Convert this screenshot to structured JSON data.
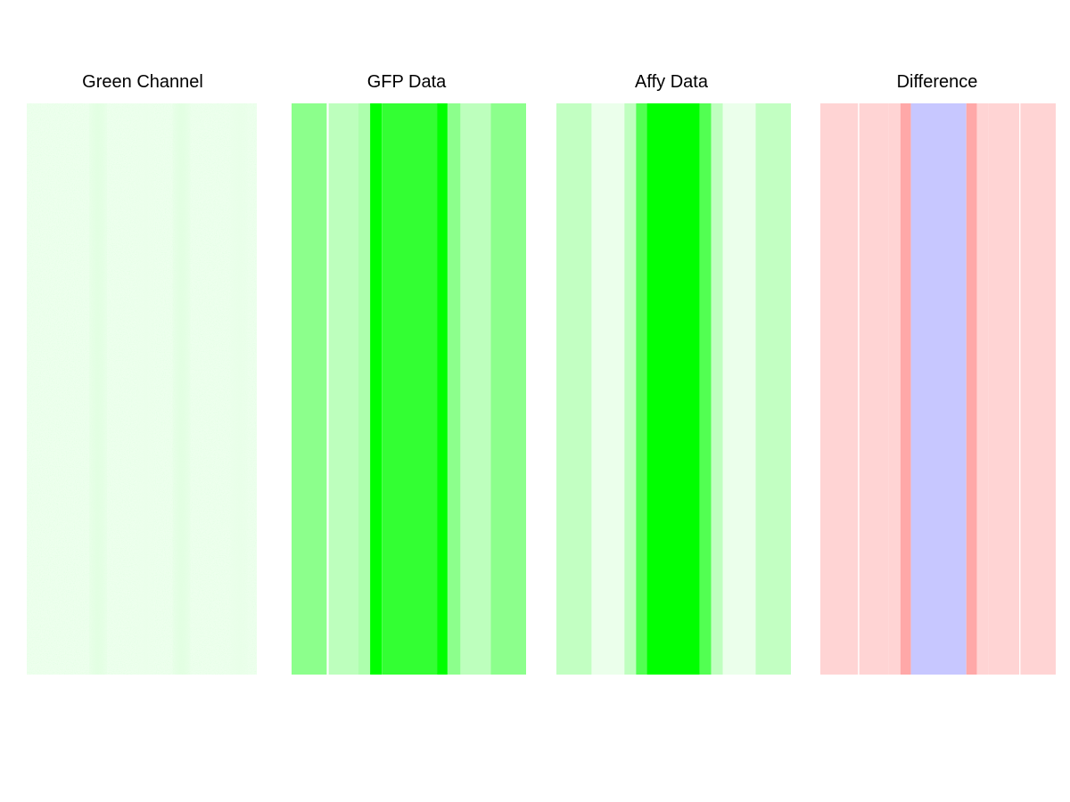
{
  "colors": {
    "background": "#ffffff",
    "green_full": "#00ff00",
    "red": "#ff0000",
    "blue": "#0000ff"
  },
  "chart_data": {
    "type": "heatmap",
    "panels": [
      {
        "key": "green_channel",
        "title": "Green Channel",
        "kind": "microscopy",
        "hue": "green",
        "base_intensity": 0.07,
        "faint_stripes": [
          {
            "x": 0.32,
            "intensity": 0.12
          },
          {
            "x": 0.52,
            "intensity": 0.08
          },
          {
            "x": 0.67,
            "intensity": 0.12
          },
          {
            "x": 0.91,
            "intensity": 0.09
          }
        ]
      },
      {
        "key": "gfp_data",
        "title": "GFP Data",
        "kind": "bands",
        "bands": [
          {
            "from": 0.0,
            "to": 0.15,
            "hue": "green",
            "intensity": 0.45
          },
          {
            "from": 0.158,
            "to": 0.285,
            "hue": "green",
            "intensity": 0.26
          },
          {
            "from": 0.285,
            "to": 0.335,
            "hue": "green",
            "intensity": 0.32
          },
          {
            "from": 0.335,
            "to": 0.385,
            "hue": "green",
            "intensity": 1.0
          },
          {
            "from": 0.385,
            "to": 0.62,
            "hue": "green",
            "intensity": 0.8
          },
          {
            "from": 0.62,
            "to": 0.665,
            "hue": "green",
            "intensity": 1.0
          },
          {
            "from": 0.665,
            "to": 0.72,
            "hue": "green",
            "intensity": 0.45
          },
          {
            "from": 0.72,
            "to": 0.85,
            "hue": "green",
            "intensity": 0.26
          },
          {
            "from": 0.85,
            "to": 1.0,
            "hue": "green",
            "intensity": 0.45
          }
        ]
      },
      {
        "key": "affy_data",
        "title": "Affy Data",
        "kind": "bands",
        "bands": [
          {
            "from": 0.0,
            "to": 0.15,
            "hue": "green",
            "intensity": 0.24
          },
          {
            "from": 0.15,
            "to": 0.29,
            "hue": "green",
            "intensity": 0.08
          },
          {
            "from": 0.29,
            "to": 0.34,
            "hue": "green",
            "intensity": 0.25
          },
          {
            "from": 0.34,
            "to": 0.385,
            "hue": "green",
            "intensity": 0.68
          },
          {
            "from": 0.385,
            "to": 0.61,
            "hue": "green",
            "intensity": 1.0
          },
          {
            "from": 0.61,
            "to": 0.66,
            "hue": "green",
            "intensity": 0.68
          },
          {
            "from": 0.66,
            "to": 0.71,
            "hue": "green",
            "intensity": 0.25
          },
          {
            "from": 0.71,
            "to": 0.85,
            "hue": "green",
            "intensity": 0.08
          },
          {
            "from": 0.85,
            "to": 1.0,
            "hue": "green",
            "intensity": 0.24
          }
        ]
      },
      {
        "key": "difference",
        "title": "Difference",
        "kind": "bands",
        "bands": [
          {
            "from": 0.0,
            "to": 0.16,
            "hue": "red",
            "intensity": 0.17
          },
          {
            "from": 0.165,
            "to": 0.29,
            "hue": "red",
            "intensity": 0.17
          },
          {
            "from": 0.29,
            "to": 0.34,
            "hue": "red",
            "intensity": 0.17
          },
          {
            "from": 0.34,
            "to": 0.385,
            "hue": "red",
            "intensity": 0.34
          },
          {
            "from": 0.385,
            "to": 0.62,
            "hue": "blue",
            "intensity": 0.22
          },
          {
            "from": 0.62,
            "to": 0.665,
            "hue": "red",
            "intensity": 0.34
          },
          {
            "from": 0.665,
            "to": 0.715,
            "hue": "red",
            "intensity": 0.17
          },
          {
            "from": 0.715,
            "to": 0.845,
            "hue": "red",
            "intensity": 0.17
          },
          {
            "from": 0.85,
            "to": 1.0,
            "hue": "red",
            "intensity": 0.17
          }
        ]
      }
    ]
  }
}
